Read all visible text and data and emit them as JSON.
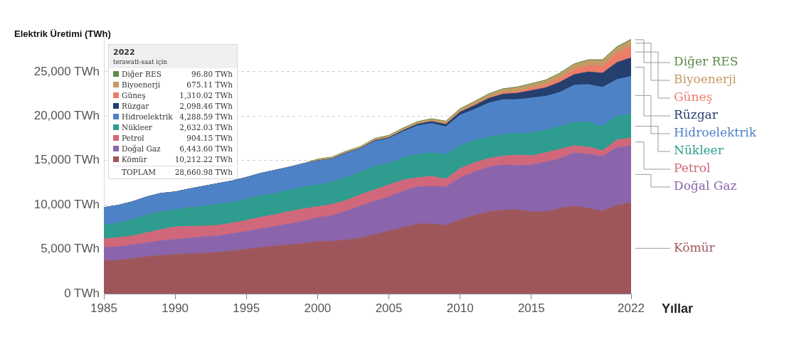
{
  "chart_data": {
    "type": "area",
    "stacked": true,
    "ylabel": "Elektrik Üretimi (TWh)",
    "xlabel": "Yıllar",
    "x": [
      1985,
      1986,
      1987,
      1988,
      1989,
      1990,
      1991,
      1992,
      1993,
      1994,
      1995,
      1996,
      1997,
      1998,
      1999,
      2000,
      2001,
      2002,
      2003,
      2004,
      2005,
      2006,
      2007,
      2008,
      2009,
      2010,
      2011,
      2012,
      2013,
      2014,
      2015,
      2016,
      2017,
      2018,
      2019,
      2020,
      2021,
      2022
    ],
    "xlim": [
      1985,
      2022
    ],
    "xticks": [
      1985,
      1990,
      1995,
      2000,
      2005,
      2010,
      2015,
      2022
    ],
    "ylim": [
      0,
      29000
    ],
    "yticks": [
      {
        "value": 0,
        "label": "0 TWh"
      },
      {
        "value": 5000,
        "label": "5,000 TWh"
      },
      {
        "value": 10000,
        "label": "10,000 TWh"
      },
      {
        "value": 15000,
        "label": "15,000 TWh"
      },
      {
        "value": 20000,
        "label": "20,000 TWh"
      },
      {
        "value": 25000,
        "label": "25,000 TWh"
      }
    ],
    "grid": "y",
    "legend": "right",
    "annotations": [
      "2022",
      "terawatt-saat için",
      "Diğer RES",
      "96.80 TWh",
      "Biyoenerji",
      "675.11 TWh",
      "Güneş",
      "1,310.02 TWh",
      "Rüzgar",
      "2,098.46 TWh",
      "Hidroelektrik",
      "4,288.59 TWh",
      "Nükleer",
      "2,632.03 TWh",
      "Petrol",
      "904.15 TWh",
      "Doğal Gaz",
      "6,443.60 TWh",
      "Kömür",
      "10,212.22 TWh",
      "TOPLAM",
      "28,660.98 TWh"
    ],
    "series": [
      {
        "name": "Kömür",
        "color": "#9e565b",
        "values": [
          3690,
          3750,
          3950,
          4150,
          4300,
          4400,
          4480,
          4570,
          4650,
          4800,
          5000,
          5200,
          5350,
          5500,
          5650,
          5850,
          5900,
          6050,
          6250,
          6650,
          7050,
          7450,
          7850,
          7850,
          7690,
          8330,
          8800,
          9210,
          9400,
          9450,
          9210,
          9210,
          9620,
          9860,
          9620,
          9290,
          9940,
          10210
        ]
      },
      {
        "name": "Doğal Gaz",
        "color": "#8a65ab",
        "values": [
          1510,
          1530,
          1550,
          1550,
          1650,
          1690,
          1770,
          1840,
          1850,
          1950,
          2000,
          2100,
          2200,
          2350,
          2500,
          2700,
          2900,
          3250,
          3610,
          3750,
          3850,
          4100,
          4170,
          4250,
          4330,
          4730,
          4900,
          5050,
          5100,
          4970,
          5290,
          5610,
          5600,
          6010,
          6090,
          6180,
          6490,
          6440
        ]
      },
      {
        "name": "Petrol",
        "color": "#d1677a",
        "values": [
          970,
          1020,
          1000,
          1150,
          1250,
          1440,
          1330,
          1200,
          1200,
          1200,
          1250,
          1300,
          1350,
          1400,
          1400,
          1250,
          1250,
          1200,
          1280,
          1300,
          1360,
          1250,
          1040,
          1120,
          880,
          1040,
          1050,
          960,
          1000,
          1200,
          1040,
          1050,
          1050,
          800,
          800,
          640,
          880,
          900
        ]
      },
      {
        "name": "Nükleer",
        "color": "#2e9c8e",
        "values": [
          1520,
          1650,
          1850,
          2000,
          2050,
          1920,
          2120,
          2250,
          2350,
          2350,
          2400,
          2450,
          2400,
          2400,
          2450,
          2450,
          2500,
          2600,
          2560,
          2650,
          2400,
          2500,
          2640,
          2650,
          2800,
          2570,
          2500,
          2410,
          2450,
          2410,
          2570,
          2560,
          2560,
          2640,
          2800,
          2720,
          2720,
          2630
        ]
      },
      {
        "name": "Hidroelektrik",
        "color": "#4d82c6",
        "values": [
          2010,
          2000,
          2000,
          2050,
          2050,
          2010,
          2100,
          2240,
          2350,
          2400,
          2450,
          2500,
          2600,
          2600,
          2650,
          2700,
          2600,
          2700,
          2600,
          2800,
          2810,
          2950,
          3210,
          3300,
          3100,
          3440,
          3500,
          3840,
          3900,
          3840,
          3930,
          3800,
          3850,
          4170,
          4250,
          4410,
          4090,
          4290
        ]
      },
      {
        "name": "Rüzgar",
        "color": "#253f6e",
        "values": [
          0,
          0,
          0,
          0,
          0,
          0,
          0,
          0,
          0,
          0,
          0,
          0,
          0,
          0,
          0,
          30,
          40,
          50,
          60,
          85,
          100,
          130,
          170,
          220,
          270,
          340,
          440,
          520,
          630,
          710,
          830,
          960,
          1130,
          1200,
          1420,
          1600,
          1920,
          2100
        ]
      },
      {
        "name": "Güneş",
        "color": "#ee7c6b",
        "values": [
          0,
          0,
          0,
          0,
          0,
          0,
          0,
          0,
          0,
          0,
          0,
          0,
          0,
          0,
          0,
          0,
          0,
          0,
          0,
          0,
          0,
          5,
          8,
          12,
          20,
          30,
          60,
          100,
          140,
          200,
          260,
          330,
          450,
          580,
          700,
          800,
          1040,
          1310
        ]
      },
      {
        "name": "Biyoenerji",
        "color": "#c39a64",
        "values": [
          0,
          0,
          0,
          0,
          0,
          0,
          0,
          0,
          0,
          0,
          0,
          0,
          0,
          0,
          0,
          140,
          150,
          160,
          170,
          200,
          210,
          220,
          230,
          250,
          280,
          300,
          330,
          350,
          380,
          430,
          450,
          470,
          500,
          540,
          580,
          630,
          640,
          680
        ]
      },
      {
        "name": "Diğer RES",
        "color": "#5b8c47",
        "values": [
          0,
          0,
          0,
          0,
          0,
          0,
          0,
          0,
          0,
          0,
          0,
          0,
          0,
          0,
          0,
          50,
          50,
          50,
          50,
          55,
          60,
          60,
          62,
          64,
          66,
          70,
          72,
          75,
          80,
          82,
          85,
          88,
          90,
          92,
          93,
          95,
          96,
          100
        ]
      }
    ]
  }
}
